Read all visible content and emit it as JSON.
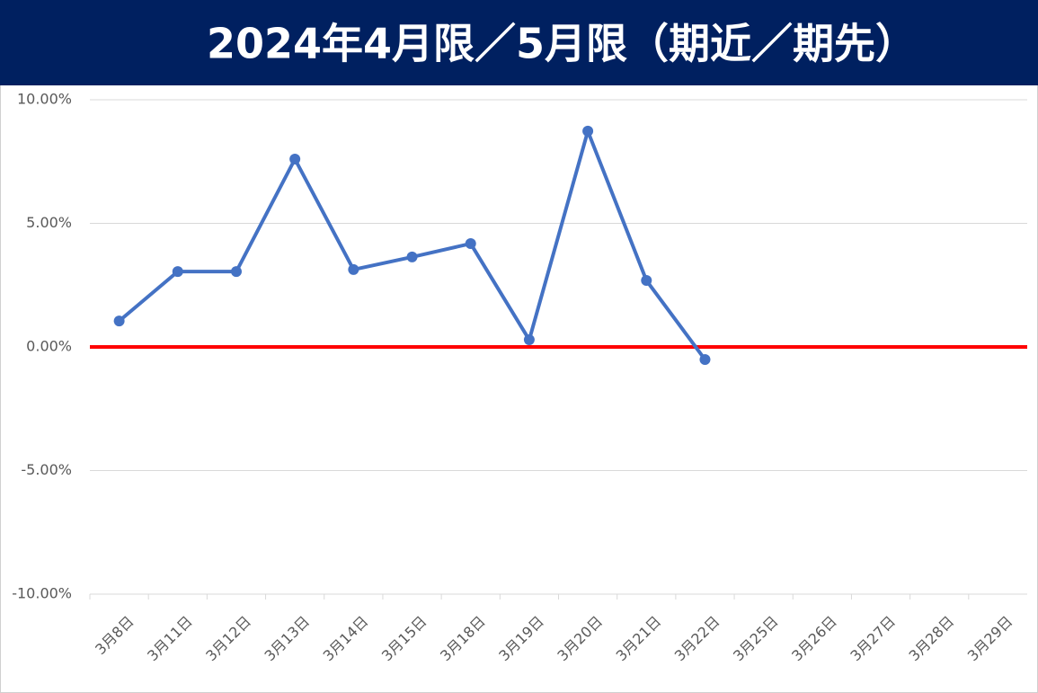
{
  "chart_data": {
    "type": "line",
    "title": "2024年4月限／5月限（期近／期先）",
    "categories": [
      "3月8日",
      "3月11日",
      "3月12日",
      "3月13日",
      "3月14日",
      "3月15日",
      "3月18日",
      "3月19日",
      "3月20日",
      "3月21日",
      "3月22日",
      "3月25日",
      "3月26日",
      "3月27日",
      "3月28日",
      "3月29日"
    ],
    "values": [
      1.05,
      3.05,
      3.05,
      7.6,
      3.13,
      3.64,
      4.18,
      0.29,
      8.73,
      2.69,
      -0.51,
      null,
      null,
      null,
      null,
      null
    ],
    "color": "#4472c4",
    "ylim": [
      -10,
      10
    ],
    "yticks": [
      {
        "value": -10,
        "label": "-10.00%"
      },
      {
        "value": -5,
        "label": "-5.00%"
      },
      {
        "value": 0,
        "label": "0.00%"
      },
      {
        "value": 5,
        "label": "5.00%"
      },
      {
        "value": 10,
        "label": "10.00%"
      }
    ],
    "grid": true,
    "grid_color": "#d9d9d9",
    "zero_line_color": "#ff0000"
  }
}
